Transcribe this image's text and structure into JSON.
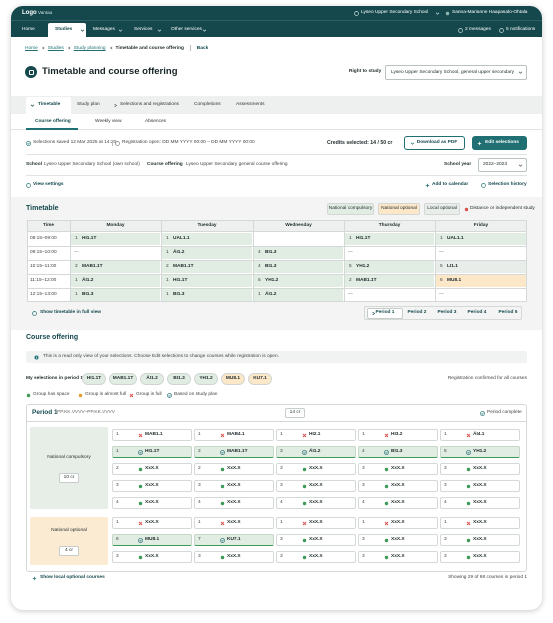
{
  "header": {
    "logo": "Logo",
    "city": "Vantaa",
    "school": "Lyseo Upper Secondary School",
    "user": "Sanna-Marianne Haapasalo-Ohtala"
  },
  "nav": {
    "items": [
      "Home",
      "Studies",
      "Messages",
      "Services",
      "Other services"
    ],
    "active": 1,
    "messages": "2 messages",
    "notifications": "5 notifications"
  },
  "breadcrumb": {
    "items": [
      "Home",
      "Studies",
      "Study planning",
      "Timetable and course offering"
    ],
    "back": "Back"
  },
  "page": {
    "title": "Timetable and course offering",
    "right_to_study_label": "Right to study",
    "right_to_study": "Lyseo Upper Secondary School, general upper secondary"
  },
  "tabs": {
    "items": [
      "Timetable",
      "Study plan",
      "Selections and registrations",
      "Completions",
      "Assessments"
    ],
    "active": 0
  },
  "subtabs": {
    "items": [
      "Course offering",
      "Weekly view",
      "Absences"
    ],
    "active": 0
  },
  "status": {
    "saved": "Selections saved 12 Mar 2025 at 14:20",
    "registration": "Registration open: DD MM YYYY 00:00 – DD MM YYYY 00:00",
    "credits": "Credits selected: 14 / 50 cr",
    "download": "Download as PDF",
    "edit": "Edit selections"
  },
  "context": {
    "school_label": "School",
    "school": "Lyseo Upper Secondary School (own school)",
    "offering_label": "Course offering",
    "offering": "Lyseo Upper Secondary general course offering",
    "year_label": "School year",
    "year": "2022–2023"
  },
  "actions": {
    "view_settings": "View settings",
    "calendar": "Add to calendar",
    "history": "Selection history"
  },
  "timetable": {
    "title": "Timetable",
    "legend": [
      {
        "label": "National compulsory",
        "color": "#e1ece2"
      },
      {
        "label": "National optional",
        "color": "#fce7c9"
      },
      {
        "label": "Local optional",
        "color": "#e8edea"
      },
      {
        "label": "Distance or independent study",
        "color": "#d9534f"
      }
    ],
    "columns": [
      "Time",
      "Monday",
      "Tuesday",
      "Wednesday",
      "Thursday",
      "Friday"
    ],
    "rows": [
      {
        "time": "08:15–09:00",
        "cells": [
          {
            "group": "1",
            "code": "HI1.1T",
            "legend": 0
          },
          {
            "group": "1",
            "code": "UAL1.1",
            "legend": 0
          },
          null,
          {
            "group": "1",
            "code": "HI1.1T",
            "legend": 0
          },
          {
            "group": "1",
            "code": "UAL1.1",
            "legend": 0
          }
        ]
      },
      {
        "time": "09:15–10:00",
        "cells": [
          {
            "text": "—"
          },
          {
            "group": "1",
            "code": "ÄI1.2",
            "legend": 0
          },
          {
            "group": "4",
            "code": "BI1.3",
            "legend": 0
          },
          {
            "text": "—"
          },
          {
            "text": "—"
          }
        ]
      },
      {
        "time": "10:15–11:00",
        "cells": [
          {
            "group": "2",
            "code": "MAB1.1T",
            "legend": 0
          },
          {
            "group": "2",
            "code": "MAB1.1T",
            "legend": 0
          },
          {
            "group": "4",
            "code": "BI1.3",
            "legend": 0
          },
          {
            "group": "5",
            "code": "YH1.2",
            "legend": 0
          },
          {
            "group": "5",
            "code": "LI1.1",
            "legend": 2
          }
        ]
      },
      {
        "time": "11:15–12:00",
        "cells": [
          {
            "group": "1",
            "code": "ÄI1.2",
            "legend": 0
          },
          {
            "group": "1",
            "code": "HI1.1T",
            "legend": 0
          },
          {
            "group": "5",
            "code": "YH1.2",
            "legend": 0
          },
          {
            "group": "2",
            "code": "MAB1.1T",
            "legend": 0
          },
          {
            "group": "6",
            "code": "MU8.1",
            "legend": 1
          }
        ]
      },
      {
        "time": "12:15–13:00",
        "cells": [
          {
            "group": "1",
            "code": "BI1.3",
            "legend": 0
          },
          {
            "group": "1",
            "code": "BI1.3",
            "legend": 0
          },
          {
            "group": "1",
            "code": "ÄI1.2",
            "legend": 0
          },
          {
            "text": "—"
          },
          {
            "text": "—"
          }
        ]
      }
    ],
    "full_view": "Show timetable in full view",
    "periods": [
      "Period 1",
      "Period 2",
      "Period 3",
      "Period 4",
      "Period 5"
    ],
    "active_period": 0
  },
  "offering": {
    "title": "Course offering",
    "notice": "This is a read only view of your selections. Choose Edit selections to change courses while registration is open.",
    "selections_label": "My selections in period 1",
    "selections": [
      {
        "code": "HI1.1T",
        "color": "#e1ece2"
      },
      {
        "code": "MAB1.1T",
        "color": "#e1ece2"
      },
      {
        "code": "ÄI1.2",
        "color": "#e1ece2"
      },
      {
        "code": "BI1.3",
        "color": "#e1ece2"
      },
      {
        "code": "YH1.2",
        "color": "#e1ece2"
      },
      {
        "code": "MU8.1",
        "color": "#fce7c9"
      },
      {
        "code": "KU7.1",
        "color": "#fce7c9"
      }
    ],
    "confirmed": "Registration confirmed for all courses",
    "legend": [
      "Group has space",
      "Group is almost full",
      "Group is full",
      "Based on study plan"
    ],
    "period": {
      "title": "Period 1",
      "dates": "PP.KK.VVVV–PP.KK.VVVV",
      "credits": "14 cr",
      "complete": "Period complete"
    },
    "blocks": [
      {
        "label": "National compulsory",
        "credits": "10 cr",
        "color": "#e6eee7",
        "rows": [
          [
            [
              "1",
              "MAB1.1",
              "full"
            ],
            [
              "1",
              "MAB4.1",
              "full"
            ],
            [
              "1",
              "HI2.1",
              "full"
            ],
            [
              "1",
              "HI3.2",
              "full"
            ],
            [
              "1",
              "ÄI4.1",
              "full"
            ]
          ],
          [
            [
              "1",
              "HI1.1T",
              "selected"
            ],
            [
              "2",
              "MAB1.1T",
              "selected"
            ],
            [
              "3",
              "ÄI1.2",
              "selected"
            ],
            [
              "4",
              "BI1.3",
              "selected"
            ],
            [
              "5",
              "YH1.2",
              "selected"
            ]
          ],
          [
            [
              "2",
              "XxX.X",
              "space"
            ],
            [
              "2",
              "XxX.X",
              "space"
            ],
            [
              "3",
              "XxX.X",
              "space"
            ],
            [
              "3",
              "XxX.X",
              "space"
            ],
            [
              "3",
              "XxX.X",
              "space"
            ]
          ],
          [
            [
              "3",
              "XxX.X",
              "space"
            ],
            [
              "3",
              "XxX.X",
              "space"
            ],
            [
              "3",
              "XxX.X",
              "space"
            ],
            [
              "3",
              "XxX.X",
              "space"
            ],
            [
              "3",
              "XxX.X",
              "space"
            ]
          ],
          [
            [
              "4",
              "XxX.X",
              "space"
            ],
            [
              "4",
              "XxX.X",
              "space"
            ],
            [
              "4",
              "XxX.X",
              "space"
            ],
            [
              "4",
              "XxX.X",
              "space"
            ],
            [
              "4",
              "XxX.X",
              "space"
            ]
          ]
        ]
      },
      {
        "label": "National optional",
        "credits": "4 cr",
        "color": "#fcebd3",
        "rows": [
          [
            [
              "1",
              "XxX.X",
              "full"
            ],
            [
              "1",
              "XxX.X",
              "full"
            ],
            [
              "1",
              "XxX.X",
              "full"
            ],
            [
              "1",
              "XxX.X",
              "full"
            ],
            [
              "1",
              "XxX.X",
              "full"
            ]
          ],
          [
            [
              "6",
              "MU8.1",
              "selected"
            ],
            [
              "7",
              "KU7.1",
              "selected"
            ],
            [
              "3",
              "XxX.X",
              "space"
            ],
            [
              "3",
              "XxX.X",
              "space"
            ],
            [
              "3",
              "XxX.X",
              "space"
            ]
          ],
          [
            [
              "3",
              "XxX.X",
              "space"
            ],
            [
              "3",
              "XxX.X",
              "space"
            ],
            [
              "3",
              "XxX.X",
              "space"
            ],
            [
              "3",
              "XxX.X",
              "space"
            ],
            [
              "3",
              "XxX.X",
              "space"
            ]
          ]
        ]
      }
    ],
    "show_local": "Show local optional courses",
    "showing": "Showing 29 of 68 courses in period 1"
  }
}
